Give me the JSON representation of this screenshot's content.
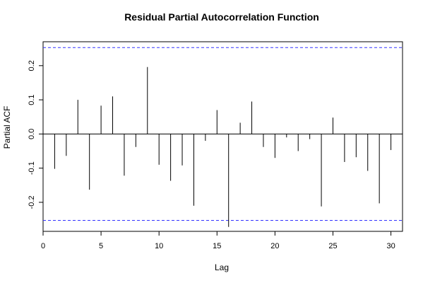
{
  "chart_data": {
    "type": "bar",
    "title": "Residual Partial Autocorrelation Function",
    "xlabel": "Lag",
    "ylabel": "Partial ACF",
    "xlim": [
      0,
      31
    ],
    "ylim": [
      -0.285,
      0.27
    ],
    "x_ticks": [
      0,
      5,
      10,
      15,
      20,
      25,
      30
    ],
    "y_ticks": [
      -0.2,
      -0.1,
      0.0,
      0.1,
      0.2
    ],
    "y_tick_labels": [
      "-0.2",
      "-0.1",
      "0.0",
      "0.1",
      "0.2"
    ],
    "confidence_bound": 0.253,
    "confidence_line_color": "#3333ff",
    "lags": [
      1,
      2,
      3,
      4,
      5,
      6,
      7,
      8,
      9,
      10,
      11,
      12,
      13,
      14,
      15,
      16,
      17,
      18,
      19,
      20,
      21,
      22,
      23,
      24,
      25,
      26,
      27,
      28,
      29,
      30
    ],
    "values": [
      -0.102,
      -0.064,
      0.1,
      -0.163,
      0.083,
      0.11,
      -0.122,
      -0.038,
      0.196,
      -0.09,
      -0.137,
      -0.092,
      -0.21,
      -0.02,
      0.07,
      -0.272,
      0.033,
      0.095,
      -0.038,
      -0.07,
      -0.01,
      -0.05,
      -0.015,
      -0.212,
      0.048,
      -0.082,
      -0.068,
      -0.108,
      -0.203,
      -0.047
    ]
  }
}
